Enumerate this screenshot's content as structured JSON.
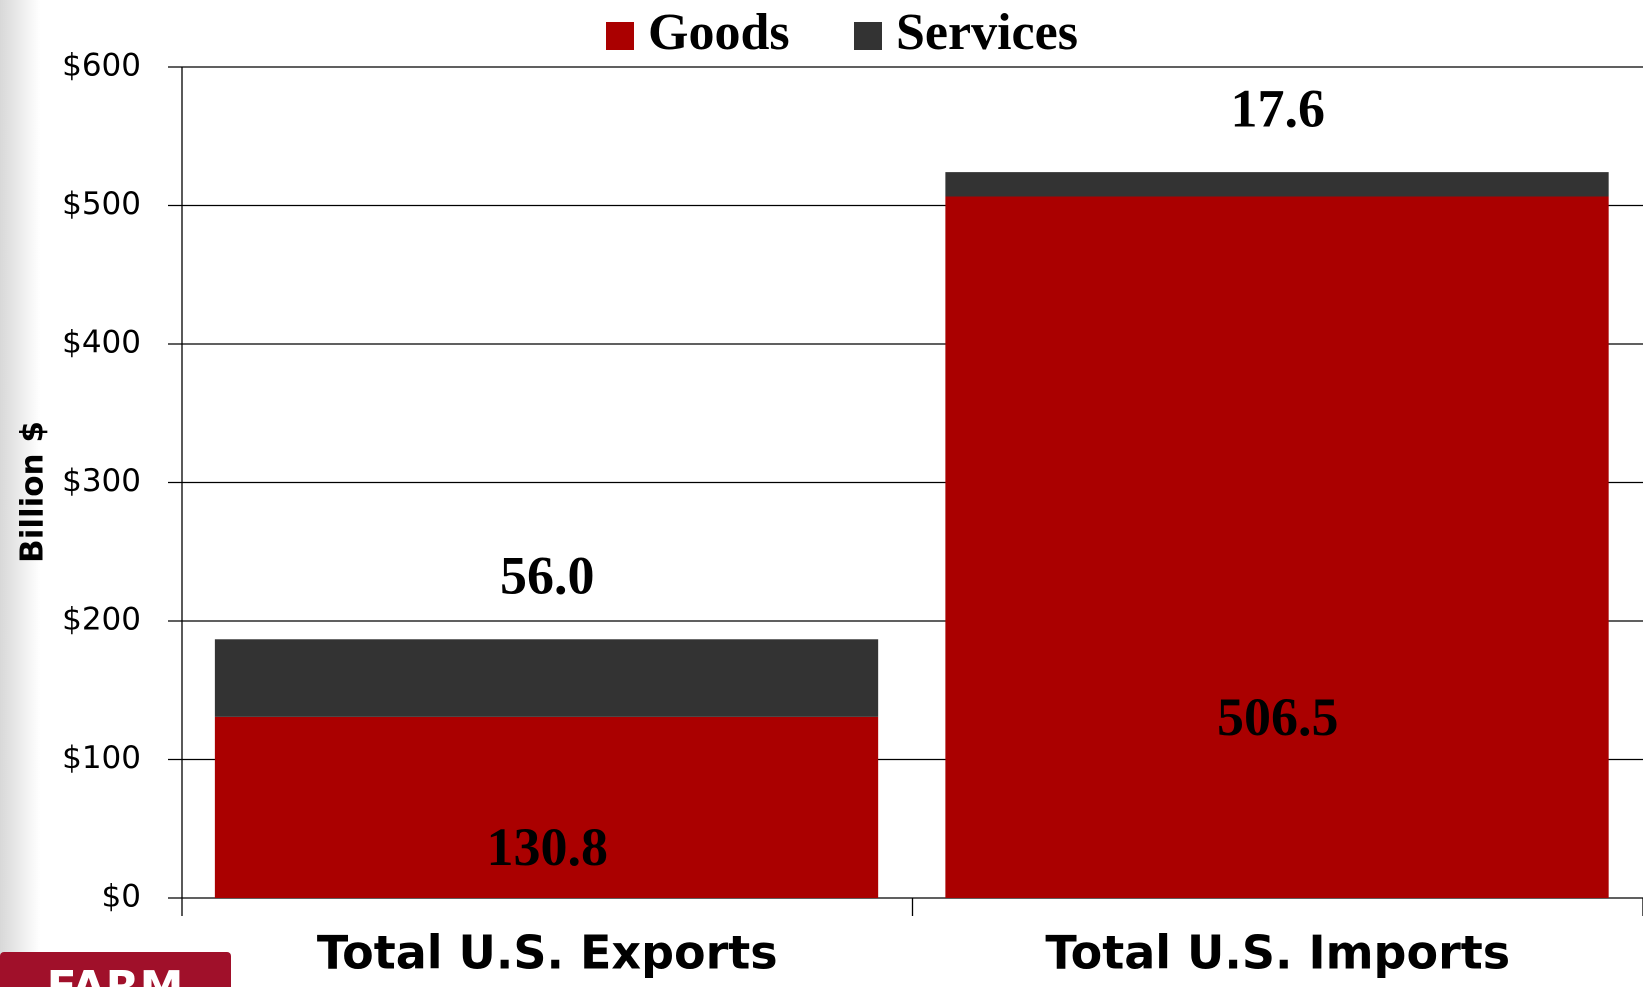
{
  "chart_data": {
    "type": "stacked_bar",
    "categories": [
      "Total U.S. Exports",
      "Total U.S. Imports"
    ],
    "series": [
      {
        "name": "Goods",
        "color": "#aa0000",
        "values": [
          130.8,
          506.5
        ],
        "value_labels": [
          "130.8",
          "506.5"
        ]
      },
      {
        "name": "Services",
        "color": "#333333",
        "values": [
          56.0,
          17.6
        ],
        "value_labels": [
          "56.0",
          "17.6"
        ]
      }
    ],
    "ylabel": "Billion $",
    "ylim": [
      0,
      600
    ],
    "yticks": [
      {
        "value": 0,
        "label": "$0"
      },
      {
        "value": 100,
        "label": "$100"
      },
      {
        "value": 200,
        "label": "$200"
      },
      {
        "value": 300,
        "label": "$300"
      },
      {
        "value": 400,
        "label": "$400"
      },
      {
        "value": 500,
        "label": "$500"
      },
      {
        "value": 600,
        "label": "$600"
      }
    ],
    "grid": true,
    "legend": "top",
    "logo_text": "FARM"
  }
}
